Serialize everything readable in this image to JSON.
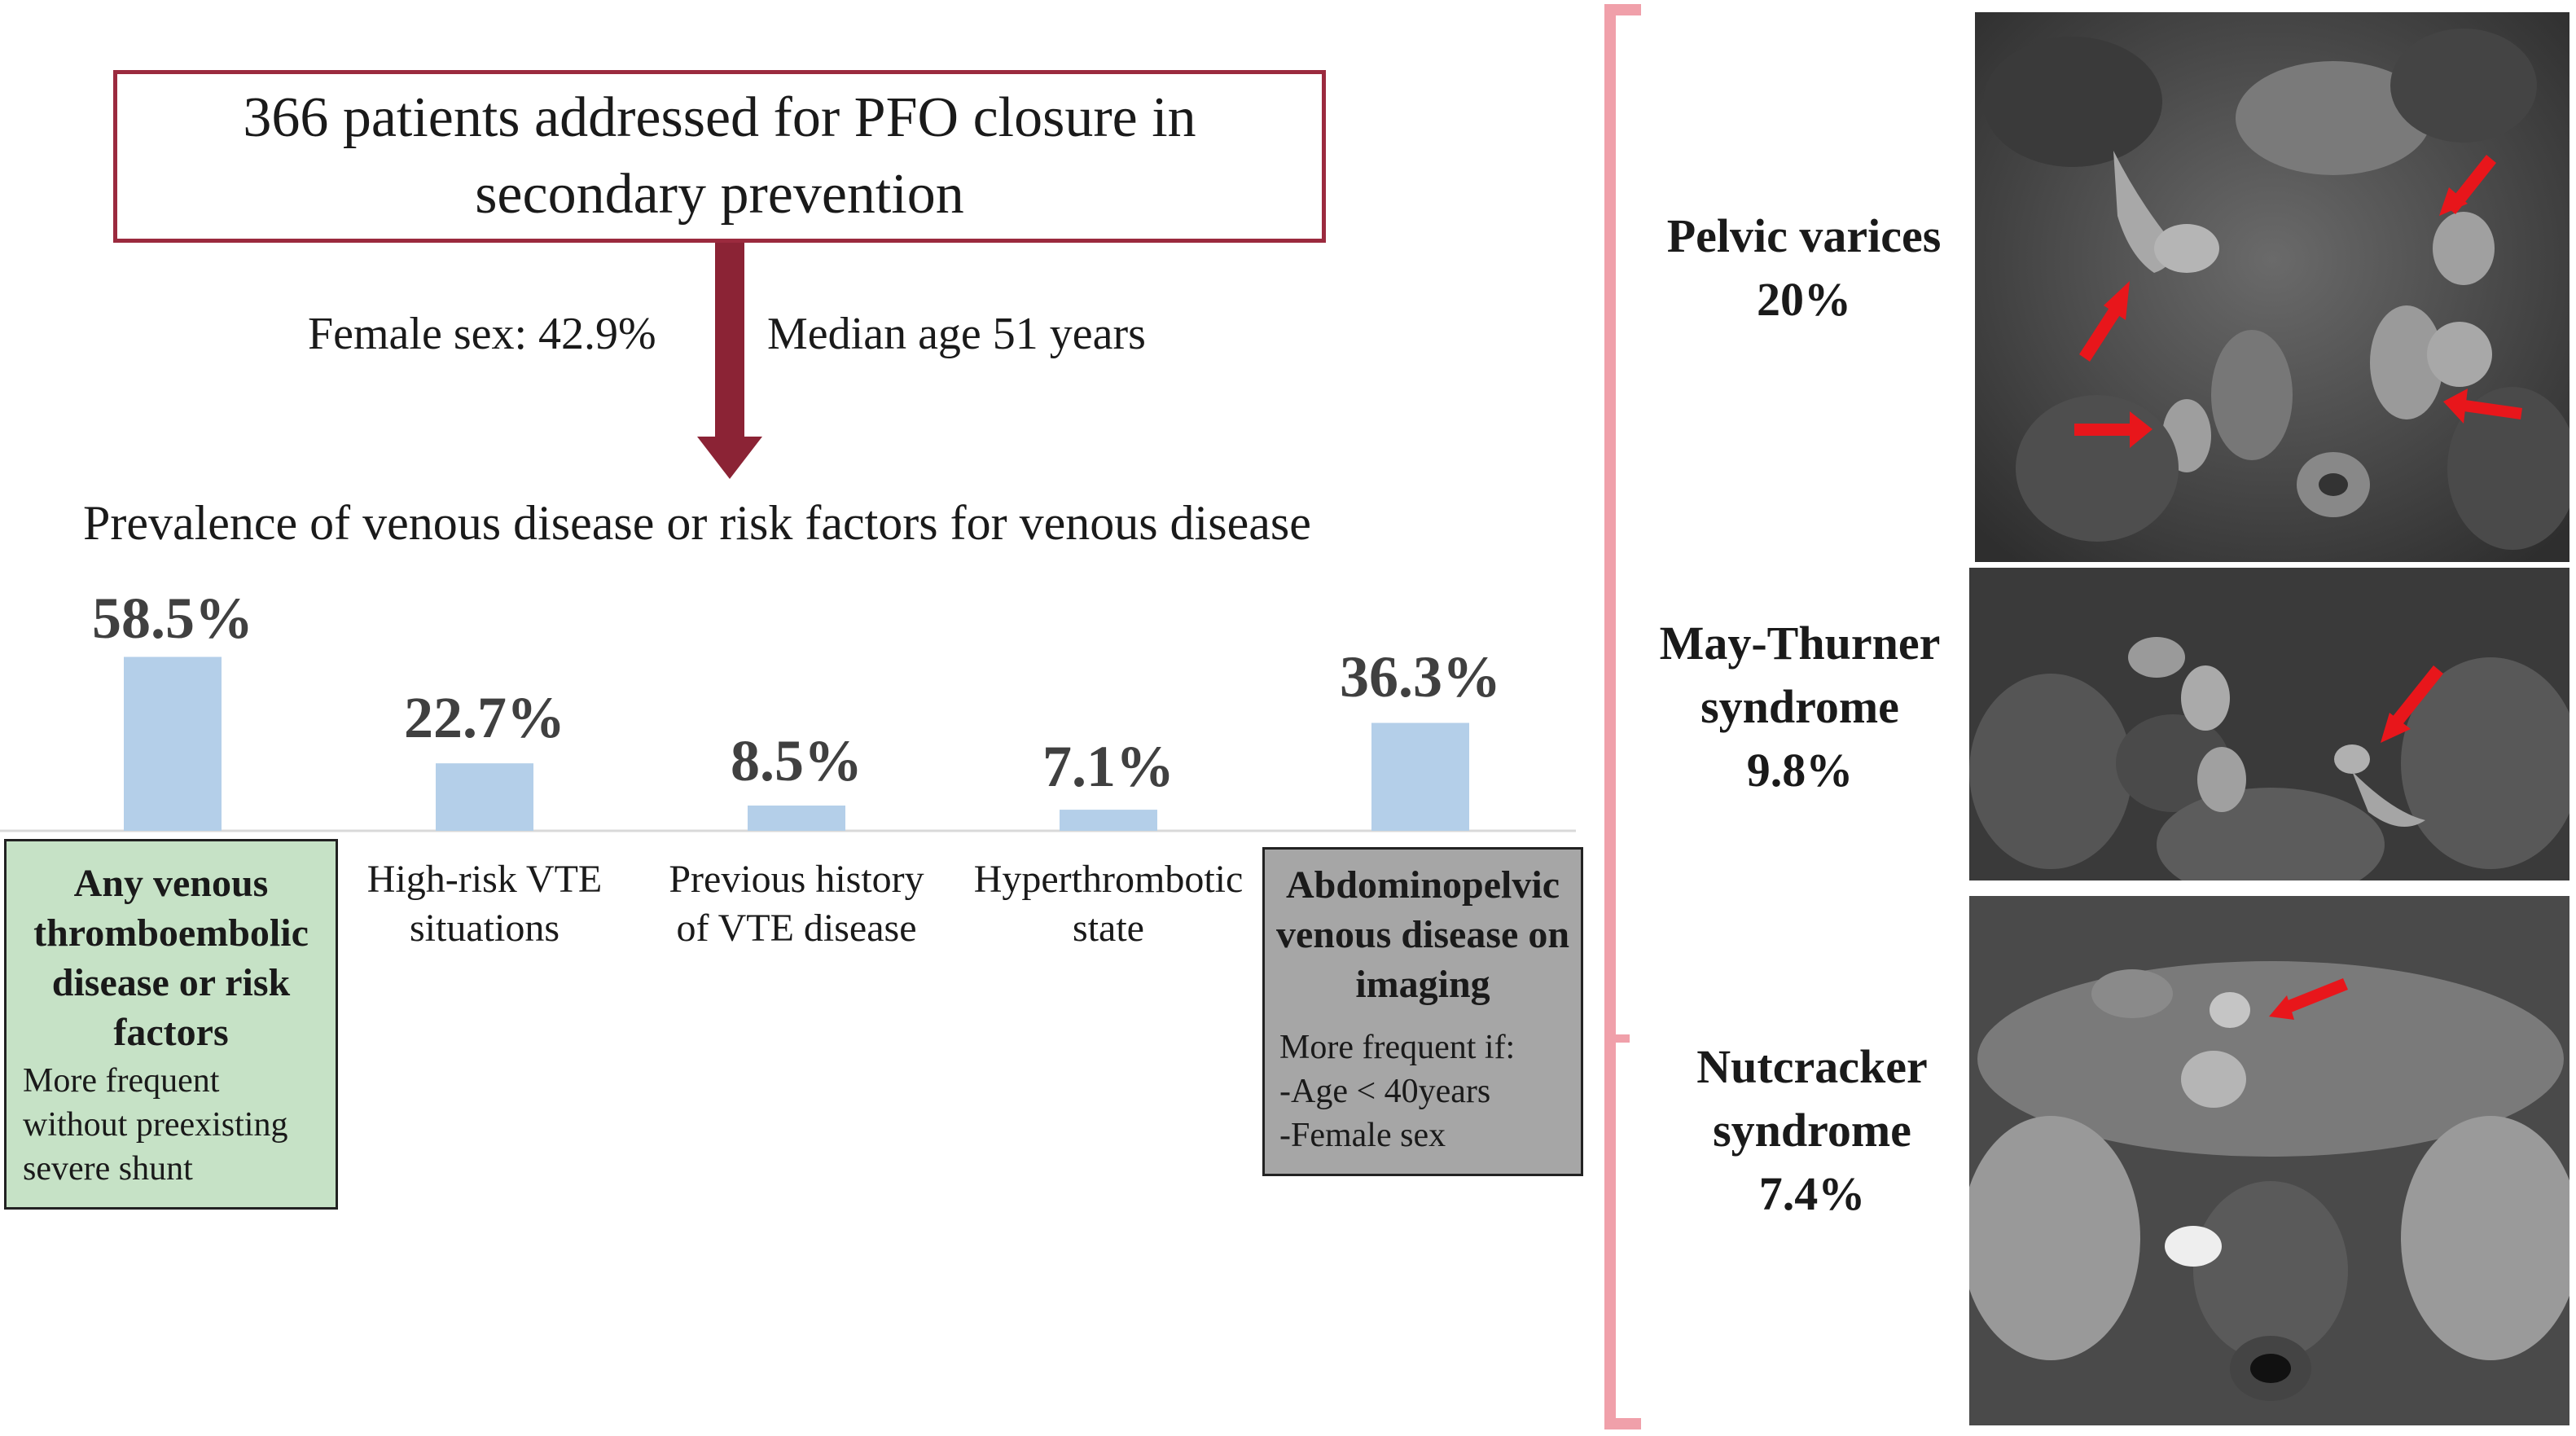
{
  "top_box": {
    "line1": "366 patients addressed for PFO closure in",
    "line2": "secondary prevention"
  },
  "stats": {
    "female": "Female sex: 42.9%",
    "age": "Median age 51 years"
  },
  "heading": "Prevalence of venous disease or risk factors for venous disease",
  "chart_data": {
    "type": "bar",
    "categories": [
      "Any venous thromboembolic disease or risk factors",
      "High-risk VTE situations",
      "Previous history of VTE disease",
      "Hyperthrombotic state",
      "Abdominopelvic venous disease on imaging"
    ],
    "values": [
      58.5,
      22.7,
      8.5,
      7.1,
      36.3
    ],
    "value_labels": [
      "58.5%",
      "22.7%",
      "8.5%",
      "7.1%",
      "36.3%"
    ],
    "bar_color": "#b4cfe9"
  },
  "cats": {
    "c1": {
      "line1": "Any venous",
      "line2": "thromboembolic",
      "line3": "disease or risk",
      "line4": "factors"
    },
    "c2": {
      "line1": "High-risk VTE",
      "line2": "situations"
    },
    "c3": {
      "line1": "Previous history",
      "line2": "of VTE disease"
    },
    "c4": {
      "line1": "Hyperthrombotic",
      "line2": "state"
    },
    "c5": {
      "line1": "Abdominopelvic",
      "line2": "venous disease on",
      "line3": "imaging"
    }
  },
  "notes": {
    "green": {
      "line1": "More frequent",
      "line2": "without preexisting",
      "line3": "severe shunt"
    },
    "gray": {
      "line1": "More frequent if:",
      "line2": "-Age < 40years",
      "line3": "-Female sex"
    }
  },
  "images": [
    {
      "line1": "Pelvic varices",
      "line2": "20%"
    },
    {
      "line1": "May-Thurner",
      "line2": "syndrome",
      "line3": "9.8%"
    },
    {
      "line1": "Nutcracker",
      "line2": "syndrome",
      "line3": "7.4%"
    }
  ],
  "colors": {
    "box_border": "#9b2a3e",
    "arrow": "#8b2335",
    "bracket": "#f0a0aa",
    "green_box": "#c6e2c6",
    "gray_box": "#a6a6a6",
    "annotation_arrow": "#e8161b"
  }
}
